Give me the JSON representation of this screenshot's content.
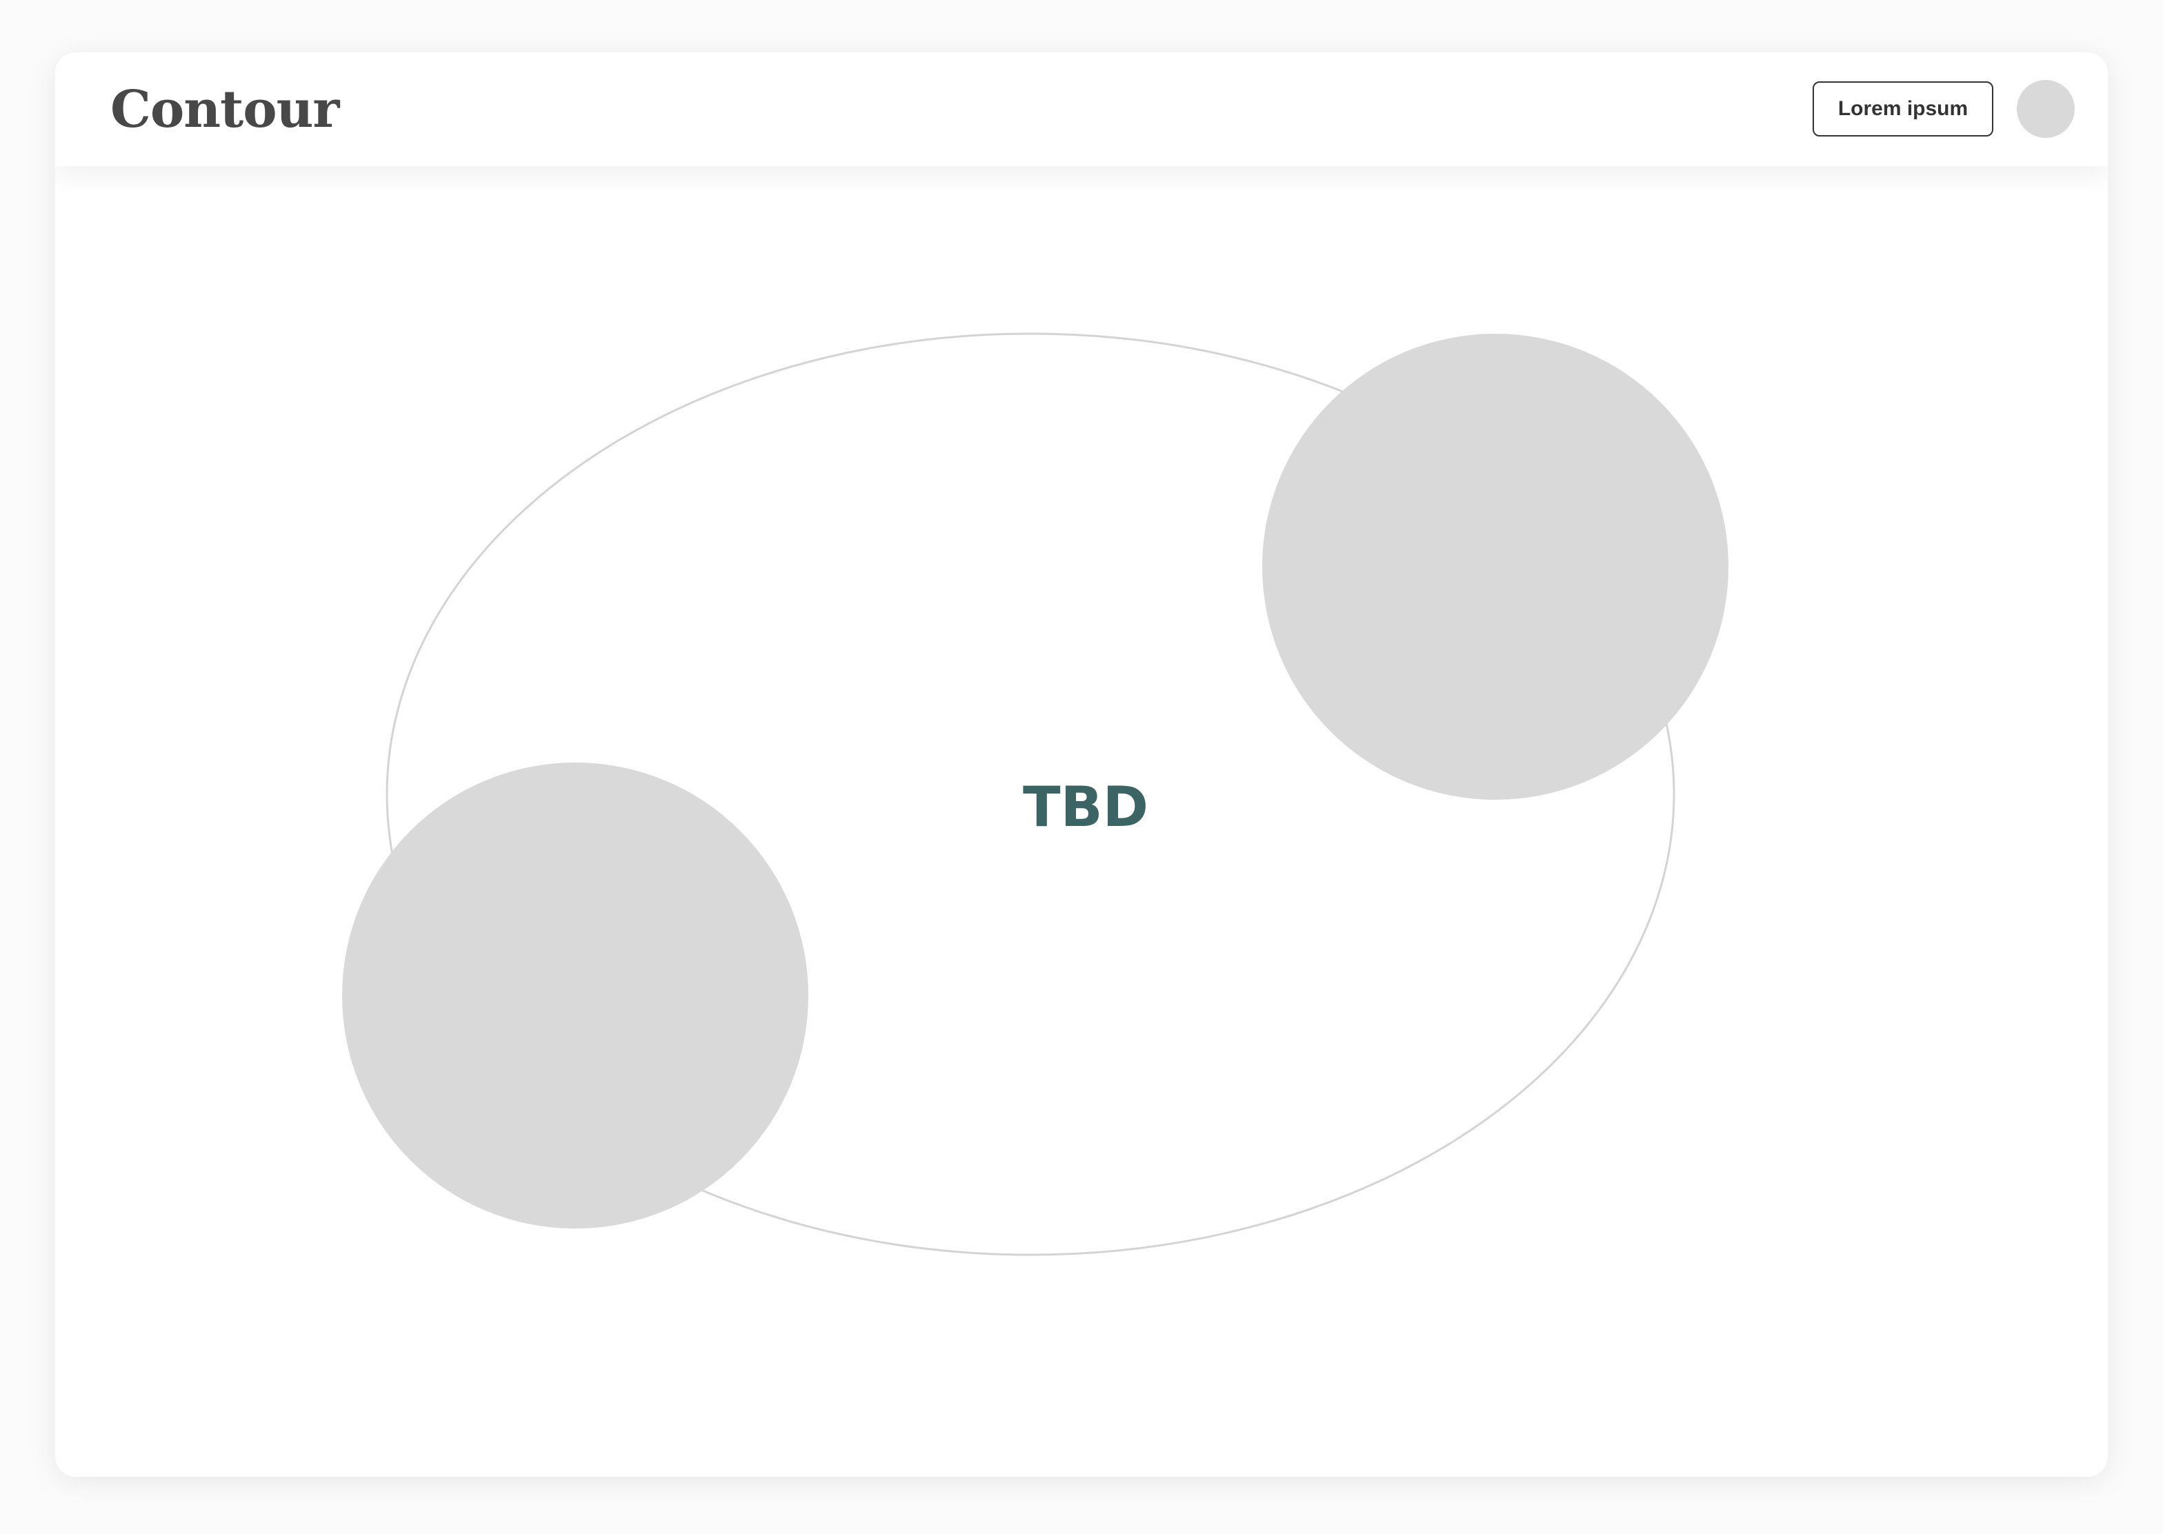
{
  "app": {
    "logo_text": "Contour"
  },
  "header": {
    "button_label": "Lorem ipsum"
  },
  "diagram": {
    "center_label": "TBD"
  },
  "colors": {
    "logo": "#484848",
    "accent_text": "#3d6464",
    "placeholder_fill": "#d9d9d9",
    "outline": "#d4d4d4"
  }
}
